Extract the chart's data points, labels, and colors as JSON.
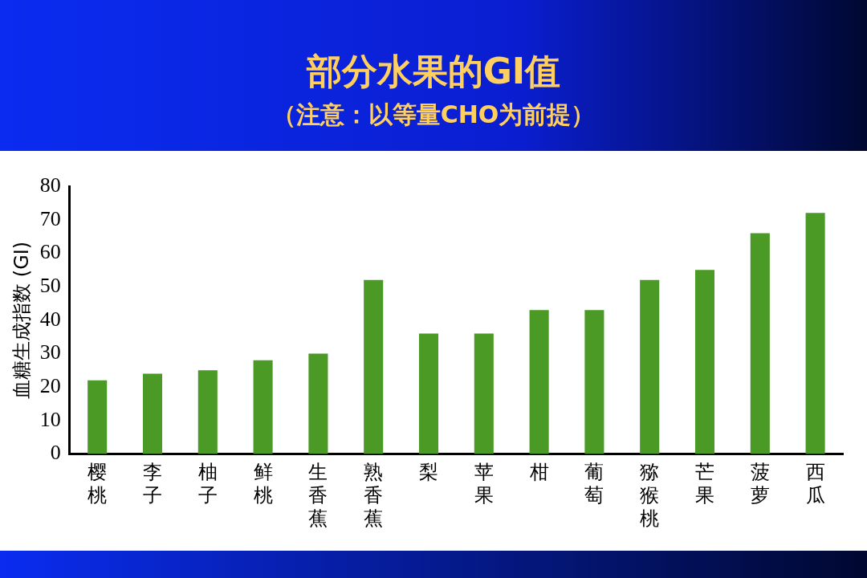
{
  "chart_data": {
    "type": "bar",
    "title": "部分水果的GI值",
    "subtitle": "（注意：以等量CHO为前提）",
    "ylabel": "血糖生成指数 (GI)",
    "categories": [
      "樱桃",
      "李子",
      "柚子",
      "鲜桃",
      "生香蕉",
      "熟香蕉",
      "梨",
      "苹果",
      "柑",
      "葡萄",
      "猕猴桃",
      "芒果",
      "菠萝",
      "西瓜"
    ],
    "values": [
      22,
      24,
      25,
      28,
      30,
      52,
      36,
      36,
      43,
      43,
      52,
      55,
      66,
      72
    ],
    "color": "#4b9a26",
    "ylim": [
      0,
      80
    ],
    "yticks": [
      0,
      10,
      20,
      30,
      40,
      50,
      60,
      70,
      80
    ],
    "grid": false,
    "legend": false
  }
}
